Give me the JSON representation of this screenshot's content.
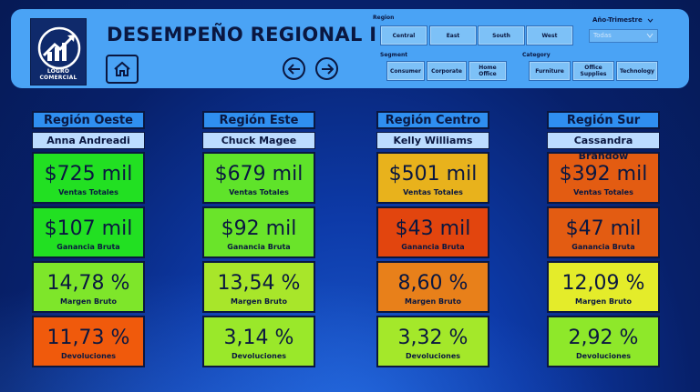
{
  "header": {
    "logo_text": "LOGRO COMERCIAL",
    "title": "DESEMPEÑO REGIONAL I"
  },
  "filters": {
    "region": {
      "label": "Region",
      "options": [
        "Central",
        "East",
        "South",
        "West"
      ]
    },
    "segment": {
      "label": "Segment",
      "options": [
        "Consumer",
        "Corporate",
        "Home Office"
      ]
    },
    "category": {
      "label": "Category",
      "options": [
        "Furniture",
        "Office Supplies",
        "Technology"
      ]
    },
    "period": {
      "label": "Año-Trimestre",
      "selected": "Todas"
    }
  },
  "colors": {
    "bright_green": "#22e022",
    "green": "#5fe32a",
    "yellow_green": "#a8e62a",
    "lime": "#8ee82a",
    "yellow": "#e4ec2a",
    "amber": "#e8b21c",
    "orange": "#e86a12",
    "red_orange": "#e2450e",
    "deep_orange": "#f05a0c"
  },
  "regions": [
    {
      "name": "Región Oeste",
      "manager": "Anna Andreadi",
      "kpis": [
        {
          "value": "$725 mil",
          "label": "Ventas Totales",
          "color": "#22e022"
        },
        {
          "value": "$107 mil",
          "label": "Ganancia Bruta",
          "color": "#22e022"
        },
        {
          "value": "14,78 %",
          "label": "Margen Bruto",
          "color": "#7ee62a"
        },
        {
          "value": "11,73 %",
          "label": "Devoluciones",
          "color": "#f05a0c"
        }
      ]
    },
    {
      "name": "Región Este",
      "manager": "Chuck Magee",
      "kpis": [
        {
          "value": "$679 mil",
          "label": "Ventas Totales",
          "color": "#5fe32a"
        },
        {
          "value": "$92 mil",
          "label": "Ganancia Bruta",
          "color": "#6ae42a"
        },
        {
          "value": "13,54 %",
          "label": "Margen Bruto",
          "color": "#a8e62a"
        },
        {
          "value": "3,14 %",
          "label": "Devoluciones",
          "color": "#9ae82a"
        }
      ]
    },
    {
      "name": "Región Centro",
      "manager": "Kelly Williams",
      "kpis": [
        {
          "value": "$501 mil",
          "label": "Ventas Totales",
          "color": "#e8b21c"
        },
        {
          "value": "$43 mil",
          "label": "Ganancia Bruta",
          "color": "#e2450e"
        },
        {
          "value": "8,60 %",
          "label": "Margen Bruto",
          "color": "#e8801a"
        },
        {
          "value": "3,32 %",
          "label": "Devoluciones",
          "color": "#a4e82a"
        }
      ]
    },
    {
      "name": "Región Sur",
      "manager": "Cassandra Brandow",
      "kpis": [
        {
          "value": "$392 mil",
          "label": "Ventas Totales",
          "color": "#e35c12"
        },
        {
          "value": "$47 mil",
          "label": "Ganancia Bruta",
          "color": "#e35c12"
        },
        {
          "value": "12,09 %",
          "label": "Margen Bruto",
          "color": "#e4ec2a"
        },
        {
          "value": "2,92 %",
          "label": "Devoluciones",
          "color": "#8ee82a"
        }
      ]
    }
  ]
}
